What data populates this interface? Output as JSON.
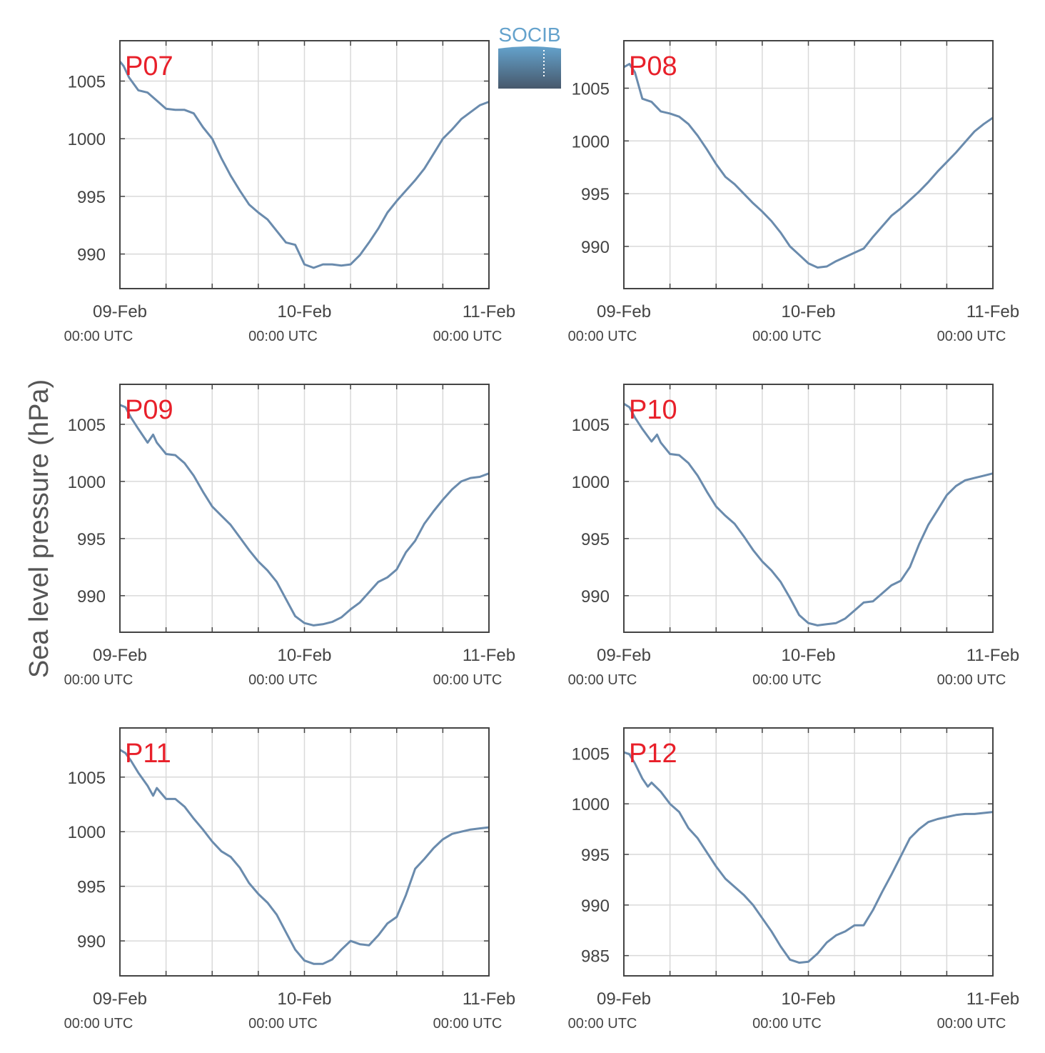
{
  "figure": {
    "ylabel": "Sea level pressure (hPa)",
    "logo_text": "SOCIB",
    "colors": {
      "line": "#6a8bad",
      "title": "#e8202a",
      "grid": "#d9d9d9",
      "axes": "#444444",
      "logo_top": "#64a2cc",
      "logo_bottom": "#47586b"
    }
  },
  "chart_data": [
    {
      "type": "line",
      "title": "P07",
      "x_ticks": [
        {
          "label": "09-Feb",
          "sub": "00:00 UTC",
          "day": 0
        },
        {
          "label": "10-Feb",
          "sub": "00:00 UTC",
          "day": 1
        },
        {
          "label": "11-Feb",
          "sub": "00:00 UTC",
          "day": 2
        }
      ],
      "xlim": [
        0,
        2
      ],
      "ylim": [
        987,
        1008.5
      ],
      "y_ticks": [
        990,
        995,
        1000,
        1005
      ],
      "grid": true,
      "x": [
        0,
        0.02,
        0.05,
        0.1,
        0.15,
        0.2,
        0.25,
        0.3,
        0.35,
        0.4,
        0.45,
        0.5,
        0.55,
        0.6,
        0.65,
        0.7,
        0.75,
        0.8,
        0.85,
        0.9,
        0.95,
        1.0,
        1.05,
        1.1,
        1.15,
        1.2,
        1.25,
        1.3,
        1.35,
        1.4,
        1.45,
        1.5,
        1.55,
        1.6,
        1.65,
        1.7,
        1.75,
        1.8,
        1.85,
        1.9,
        1.95,
        2.0
      ],
      "y": [
        1006.7,
        1006.3,
        1005.3,
        1004.2,
        1004.0,
        1003.3,
        1002.6,
        1002.5,
        1002.5,
        1002.2,
        1001.0,
        1000.0,
        998.3,
        996.8,
        995.5,
        994.3,
        993.6,
        993.0,
        992.0,
        991.0,
        990.8,
        989.1,
        988.8,
        989.1,
        989.1,
        989.0,
        989.1,
        989.9,
        991.0,
        992.2,
        993.6,
        994.6,
        995.5,
        996.4,
        997.4,
        998.7,
        1000.0,
        1000.8,
        1001.7,
        1002.3,
        1002.9,
        1003.2
      ]
    },
    {
      "type": "line",
      "title": "P08",
      "x_ticks": [
        {
          "label": "09-Feb",
          "sub": "00:00 UTC",
          "day": 0
        },
        {
          "label": "10-Feb",
          "sub": "00:00 UTC",
          "day": 1
        },
        {
          "label": "11-Feb",
          "sub": "00:00 UTC",
          "day": 2
        }
      ],
      "xlim": [
        0,
        2
      ],
      "ylim": [
        986,
        1009.5
      ],
      "y_ticks": [
        990,
        995,
        1000,
        1005
      ],
      "grid": true,
      "x": [
        0,
        0.03,
        0.06,
        0.1,
        0.15,
        0.2,
        0.25,
        0.3,
        0.35,
        0.4,
        0.45,
        0.5,
        0.55,
        0.6,
        0.65,
        0.7,
        0.75,
        0.8,
        0.85,
        0.9,
        0.95,
        1.0,
        1.05,
        1.1,
        1.15,
        1.2,
        1.25,
        1.3,
        1.35,
        1.4,
        1.45,
        1.5,
        1.55,
        1.6,
        1.65,
        1.7,
        1.75,
        1.8,
        1.85,
        1.9,
        1.95,
        2.0
      ],
      "y": [
        1007.0,
        1007.3,
        1006.5,
        1004.0,
        1003.7,
        1002.8,
        1002.6,
        1002.3,
        1001.6,
        1000.5,
        999.2,
        997.8,
        996.6,
        995.9,
        995.0,
        994.1,
        993.3,
        992.4,
        991.3,
        990.0,
        989.2,
        988.4,
        988.0,
        988.1,
        988.6,
        989.0,
        989.4,
        989.8,
        990.9,
        991.9,
        992.9,
        993.6,
        994.4,
        995.2,
        996.1,
        997.1,
        998.0,
        998.9,
        999.9,
        1000.9,
        1001.6,
        1002.2
      ]
    },
    {
      "type": "line",
      "title": "P09",
      "x_ticks": [
        {
          "label": "09-Feb",
          "sub": "00:00 UTC",
          "day": 0
        },
        {
          "label": "10-Feb",
          "sub": "00:00 UTC",
          "day": 1
        },
        {
          "label": "11-Feb",
          "sub": "00:00 UTC",
          "day": 2
        }
      ],
      "xlim": [
        0,
        2
      ],
      "ylim": [
        986.8,
        1008.5
      ],
      "y_ticks": [
        990,
        995,
        1000,
        1005
      ],
      "grid": true,
      "x": [
        0,
        0.03,
        0.06,
        0.1,
        0.15,
        0.18,
        0.2,
        0.25,
        0.3,
        0.35,
        0.4,
        0.45,
        0.5,
        0.55,
        0.6,
        0.65,
        0.7,
        0.75,
        0.8,
        0.85,
        0.9,
        0.95,
        1.0,
        1.05,
        1.1,
        1.15,
        1.2,
        1.25,
        1.3,
        1.35,
        1.4,
        1.45,
        1.5,
        1.55,
        1.6,
        1.65,
        1.7,
        1.75,
        1.8,
        1.85,
        1.9,
        1.95,
        2.0
      ],
      "y": [
        1006.7,
        1006.5,
        1005.6,
        1004.6,
        1003.4,
        1004.1,
        1003.4,
        1002.4,
        1002.3,
        1001.6,
        1000.5,
        999.1,
        997.8,
        997.0,
        996.2,
        995.1,
        994.0,
        993.0,
        992.2,
        991.2,
        989.7,
        988.2,
        987.6,
        987.4,
        987.5,
        987.7,
        988.1,
        988.8,
        989.4,
        990.3,
        991.2,
        991.6,
        992.3,
        993.8,
        994.8,
        996.3,
        997.4,
        998.4,
        999.3,
        1000.0,
        1000.3,
        1000.4,
        1000.7
      ]
    },
    {
      "type": "line",
      "title": "P10",
      "x_ticks": [
        {
          "label": "09-Feb",
          "sub": "00:00 UTC",
          "day": 0
        },
        {
          "label": "10-Feb",
          "sub": "00:00 UTC",
          "day": 1
        },
        {
          "label": "11-Feb",
          "sub": "00:00 UTC",
          "day": 2
        }
      ],
      "xlim": [
        0,
        2
      ],
      "ylim": [
        986.8,
        1008.5
      ],
      "y_ticks": [
        990,
        995,
        1000,
        1005
      ],
      "grid": true,
      "x": [
        0,
        0.03,
        0.06,
        0.1,
        0.15,
        0.18,
        0.2,
        0.25,
        0.3,
        0.35,
        0.4,
        0.45,
        0.5,
        0.55,
        0.6,
        0.65,
        0.7,
        0.75,
        0.8,
        0.85,
        0.9,
        0.95,
        1.0,
        1.05,
        1.1,
        1.15,
        1.2,
        1.25,
        1.3,
        1.35,
        1.4,
        1.45,
        1.5,
        1.55,
        1.6,
        1.65,
        1.7,
        1.75,
        1.8,
        1.85,
        1.9,
        1.95,
        2.0
      ],
      "y": [
        1006.8,
        1006.5,
        1005.6,
        1004.6,
        1003.5,
        1004.1,
        1003.4,
        1002.4,
        1002.3,
        1001.6,
        1000.5,
        999.1,
        997.8,
        997.0,
        996.3,
        995.2,
        994.0,
        993.0,
        992.2,
        991.2,
        989.8,
        988.3,
        987.6,
        987.4,
        987.5,
        987.6,
        988.0,
        988.7,
        989.4,
        989.5,
        990.2,
        990.9,
        991.3,
        992.5,
        994.5,
        996.2,
        997.5,
        998.8,
        999.6,
        1000.1,
        1000.3,
        1000.5,
        1000.7
      ]
    },
    {
      "type": "line",
      "title": "P11",
      "x_ticks": [
        {
          "label": "09-Feb",
          "sub": "00:00 UTC",
          "day": 0
        },
        {
          "label": "10-Feb",
          "sub": "00:00 UTC",
          "day": 1
        },
        {
          "label": "11-Feb",
          "sub": "00:00 UTC",
          "day": 2
        }
      ],
      "xlim": [
        0,
        2
      ],
      "ylim": [
        986.8,
        1009.5
      ],
      "y_ticks": [
        990,
        995,
        1000,
        1005
      ],
      "grid": true,
      "x": [
        0,
        0.03,
        0.06,
        0.1,
        0.15,
        0.18,
        0.2,
        0.25,
        0.3,
        0.35,
        0.4,
        0.45,
        0.5,
        0.55,
        0.6,
        0.65,
        0.7,
        0.75,
        0.8,
        0.85,
        0.9,
        0.95,
        1.0,
        1.05,
        1.1,
        1.15,
        1.2,
        1.25,
        1.3,
        1.35,
        1.4,
        1.45,
        1.5,
        1.55,
        1.6,
        1.65,
        1.7,
        1.75,
        1.8,
        1.85,
        1.9,
        1.95,
        2.0
      ],
      "y": [
        1007.5,
        1007.2,
        1006.5,
        1005.4,
        1004.2,
        1003.3,
        1004.0,
        1003.0,
        1003.0,
        1002.3,
        1001.2,
        1000.2,
        999.1,
        998.2,
        997.7,
        996.7,
        995.3,
        994.3,
        993.5,
        992.4,
        990.8,
        989.2,
        988.2,
        987.9,
        987.9,
        988.3,
        989.2,
        990.0,
        989.7,
        989.6,
        990.5,
        991.6,
        992.2,
        994.2,
        996.6,
        997.5,
        998.5,
        999.3,
        999.8,
        1000.0,
        1000.2,
        1000.3,
        1000.4
      ]
    },
    {
      "type": "line",
      "title": "P12",
      "x_ticks": [
        {
          "label": "09-Feb",
          "sub": "00:00 UTC",
          "day": 0
        },
        {
          "label": "10-Feb",
          "sub": "00:00 UTC",
          "day": 1
        },
        {
          "label": "11-Feb",
          "sub": "00:00 UTC",
          "day": 2
        }
      ],
      "xlim": [
        0,
        2
      ],
      "ylim": [
        983,
        1007.5
      ],
      "y_ticks": [
        985,
        990,
        995,
        1000,
        1005
      ],
      "grid": true,
      "x": [
        0,
        0.03,
        0.06,
        0.1,
        0.13,
        0.15,
        0.2,
        0.25,
        0.3,
        0.35,
        0.4,
        0.45,
        0.5,
        0.55,
        0.6,
        0.65,
        0.7,
        0.75,
        0.8,
        0.85,
        0.9,
        0.95,
        1.0,
        1.05,
        1.1,
        1.15,
        1.2,
        1.25,
        1.3,
        1.35,
        1.4,
        1.45,
        1.5,
        1.55,
        1.6,
        1.65,
        1.7,
        1.75,
        1.8,
        1.85,
        1.9,
        1.95,
        2.0
      ],
      "y": [
        1005.1,
        1004.9,
        1004.0,
        1002.5,
        1001.7,
        1002.1,
        1001.2,
        1000.0,
        999.2,
        997.6,
        996.6,
        995.2,
        993.8,
        992.6,
        991.8,
        991.0,
        990.0,
        988.7,
        987.4,
        985.9,
        984.6,
        984.3,
        984.4,
        985.2,
        986.3,
        987.0,
        987.4,
        988.0,
        988.0,
        989.5,
        991.3,
        993.0,
        994.8,
        996.6,
        997.5,
        998.2,
        998.5,
        998.7,
        998.9,
        999.0,
        999.0,
        999.1,
        999.2
      ]
    }
  ]
}
